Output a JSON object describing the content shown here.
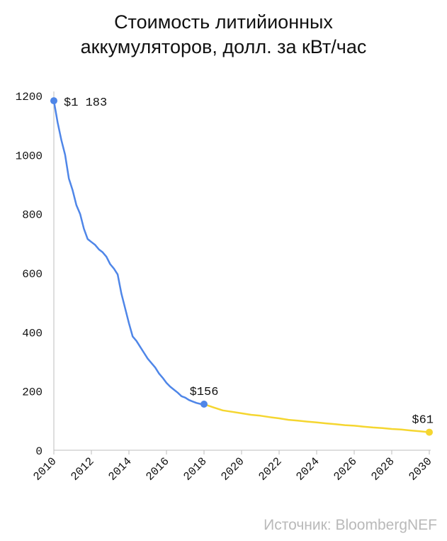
{
  "page": {
    "title_line1": "Стоимость литийионных",
    "title_line2": "аккумуляторов, долл. за кВт/час",
    "source": "Источник: BloombergNEF"
  },
  "chart_data": {
    "type": "line",
    "title": "Стоимость литийионных аккумуляторов, долл. за кВт/час",
    "xlabel": "",
    "ylabel": "",
    "xlim": [
      2010,
      2030
    ],
    "ylim": [
      0,
      1200
    ],
    "y_ticks": [
      0,
      200,
      400,
      600,
      800,
      1000,
      1200
    ],
    "x_ticks": [
      "2010",
      "2012",
      "2014",
      "2016",
      "2018",
      "2020",
      "2022",
      "2024",
      "2026",
      "2028",
      "2030"
    ],
    "grid": false,
    "legend": "none",
    "colors": {
      "historical": "#4f86e8",
      "forecast": "#f5d630"
    },
    "series": [
      {
        "segment": "historical",
        "points": [
          [
            2010.0,
            1183
          ],
          [
            2010.2,
            1110
          ],
          [
            2010.4,
            1050
          ],
          [
            2010.6,
            1000
          ],
          [
            2010.8,
            920
          ],
          [
            2011.0,
            880
          ],
          [
            2011.2,
            830
          ],
          [
            2011.4,
            800
          ],
          [
            2011.6,
            750
          ],
          [
            2011.8,
            715
          ],
          [
            2012.0,
            705
          ],
          [
            2012.2,
            695
          ],
          [
            2012.4,
            680
          ],
          [
            2012.6,
            670
          ],
          [
            2012.8,
            655
          ],
          [
            2013.0,
            630
          ],
          [
            2013.2,
            615
          ],
          [
            2013.4,
            595
          ],
          [
            2013.6,
            530
          ],
          [
            2013.8,
            480
          ],
          [
            2014.0,
            430
          ],
          [
            2014.2,
            385
          ],
          [
            2014.4,
            370
          ],
          [
            2014.6,
            350
          ],
          [
            2014.8,
            330
          ],
          [
            2015.0,
            310
          ],
          [
            2015.2,
            295
          ],
          [
            2015.4,
            280
          ],
          [
            2015.6,
            260
          ],
          [
            2015.8,
            245
          ],
          [
            2016.0,
            228
          ],
          [
            2016.2,
            215
          ],
          [
            2016.4,
            205
          ],
          [
            2016.6,
            195
          ],
          [
            2016.8,
            183
          ],
          [
            2017.0,
            178
          ],
          [
            2017.2,
            170
          ],
          [
            2017.4,
            165
          ],
          [
            2017.6,
            160
          ],
          [
            2017.8,
            157
          ],
          [
            2018.0,
            156
          ]
        ]
      },
      {
        "segment": "forecast",
        "points": [
          [
            2018.0,
            156
          ],
          [
            2018.5,
            145
          ],
          [
            2019.0,
            135
          ],
          [
            2019.5,
            130
          ],
          [
            2020.0,
            125
          ],
          [
            2020.5,
            120
          ],
          [
            2021.0,
            117
          ],
          [
            2021.5,
            112
          ],
          [
            2022.0,
            108
          ],
          [
            2022.5,
            103
          ],
          [
            2023.0,
            100
          ],
          [
            2023.5,
            97
          ],
          [
            2024.0,
            94
          ],
          [
            2024.5,
            91
          ],
          [
            2025.0,
            88
          ],
          [
            2025.5,
            85
          ],
          [
            2026.0,
            83
          ],
          [
            2026.5,
            80
          ],
          [
            2027.0,
            77
          ],
          [
            2027.5,
            75
          ],
          [
            2028.0,
            72
          ],
          [
            2028.5,
            70
          ],
          [
            2029.0,
            67
          ],
          [
            2029.5,
            64
          ],
          [
            2030.0,
            61
          ]
        ]
      }
    ],
    "markers": [
      {
        "x": 2010,
        "y": 1183,
        "label": "$1 183",
        "segment": "historical",
        "anchor": "right"
      },
      {
        "x": 2018,
        "y": 156,
        "label": "$156",
        "segment": "historical",
        "anchor": "above"
      },
      {
        "x": 2030,
        "y": 61,
        "label": "$61",
        "segment": "forecast",
        "anchor": "above"
      }
    ]
  }
}
